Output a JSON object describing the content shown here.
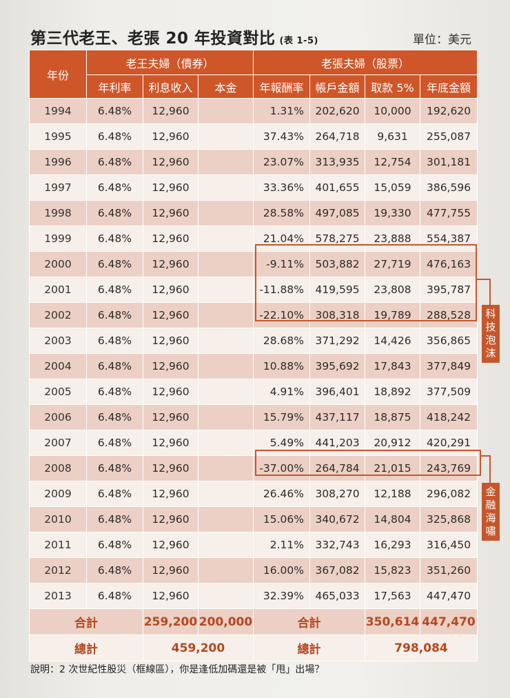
{
  "title": "第三代老王、老張 20 年投資對比",
  "table_tag": "(表 1-5)",
  "unit": "單位：美元",
  "headers": {
    "year": "年份",
    "wang_group": "老王夫婦（債券）",
    "zhang_group": "老張夫婦（股票）",
    "wang_cols": [
      "年利率",
      "利息收入",
      "本金"
    ],
    "zhang_cols": [
      "年報酬率",
      "帳戶金額",
      "取款 5%",
      "年底金額"
    ]
  },
  "rows": [
    {
      "year": "1994",
      "rate": "6.48%",
      "interest": "12,960",
      "ret": "1.31%",
      "account": "202,620",
      "withdraw": "10,000",
      "end": "192,620"
    },
    {
      "year": "1995",
      "rate": "6.48%",
      "interest": "12,960",
      "ret": "37.43%",
      "account": "264,718",
      "withdraw": "9,631",
      "end": "255,087"
    },
    {
      "year": "1996",
      "rate": "6.48%",
      "interest": "12,960",
      "ret": "23.07%",
      "account": "313,935",
      "withdraw": "12,754",
      "end": "301,181"
    },
    {
      "year": "1997",
      "rate": "6.48%",
      "interest": "12,960",
      "ret": "33.36%",
      "account": "401,655",
      "withdraw": "15,059",
      "end": "386,596"
    },
    {
      "year": "1998",
      "rate": "6.48%",
      "interest": "12,960",
      "ret": "28.58%",
      "account": "497,085",
      "withdraw": "19,330",
      "end": "477,755"
    },
    {
      "year": "1999",
      "rate": "6.48%",
      "interest": "12,960",
      "ret": "21.04%",
      "account": "578,275",
      "withdraw": "23,888",
      "end": "554,387"
    },
    {
      "year": "2000",
      "rate": "6.48%",
      "interest": "12,960",
      "ret": "-9.11%",
      "account": "503,882",
      "withdraw": "27,719",
      "end": "476,163"
    },
    {
      "year": "2001",
      "rate": "6.48%",
      "interest": "12,960",
      "ret": "-11.88%",
      "account": "419,595",
      "withdraw": "23,808",
      "end": "395,787"
    },
    {
      "year": "2002",
      "rate": "6.48%",
      "interest": "12,960",
      "ret": "-22.10%",
      "account": "308,318",
      "withdraw": "19,789",
      "end": "288,528"
    },
    {
      "year": "2003",
      "rate": "6.48%",
      "interest": "12,960",
      "ret": "28.68%",
      "account": "371,292",
      "withdraw": "14,426",
      "end": "356,865"
    },
    {
      "year": "2004",
      "rate": "6.48%",
      "interest": "12,960",
      "ret": "10.88%",
      "account": "395,692",
      "withdraw": "17,843",
      "end": "377,849"
    },
    {
      "year": "2005",
      "rate": "6.48%",
      "interest": "12,960",
      "ret": "4.91%",
      "account": "396,401",
      "withdraw": "18,892",
      "end": "377,509"
    },
    {
      "year": "2006",
      "rate": "6.48%",
      "interest": "12,960",
      "ret": "15.79%",
      "account": "437,117",
      "withdraw": "18,875",
      "end": "418,242"
    },
    {
      "year": "2007",
      "rate": "6.48%",
      "interest": "12,960",
      "ret": "5.49%",
      "account": "441,203",
      "withdraw": "20,912",
      "end": "420,291"
    },
    {
      "year": "2008",
      "rate": "6.48%",
      "interest": "12,960",
      "ret": "-37.00%",
      "account": "264,784",
      "withdraw": "21,015",
      "end": "243,769"
    },
    {
      "year": "2009",
      "rate": "6.48%",
      "interest": "12,960",
      "ret": "26.46%",
      "account": "308,270",
      "withdraw": "12,188",
      "end": "296,082"
    },
    {
      "year": "2010",
      "rate": "6.48%",
      "interest": "12,960",
      "ret": "15.06%",
      "account": "340,672",
      "withdraw": "14,804",
      "end": "325,868"
    },
    {
      "year": "2011",
      "rate": "6.48%",
      "interest": "12,960",
      "ret": "2.11%",
      "account": "332,743",
      "withdraw": "16,293",
      "end": "316,450"
    },
    {
      "year": "2012",
      "rate": "6.48%",
      "interest": "12,960",
      "ret": "16.00%",
      "account": "367,082",
      "withdraw": "15,823",
      "end": "351,260"
    },
    {
      "year": "2013",
      "rate": "6.48%",
      "interest": "12,960",
      "ret": "32.39%",
      "account": "465,033",
      "withdraw": "17,563",
      "end": "447,470"
    }
  ],
  "totals": {
    "label": "合計",
    "wang_interest": "259,200",
    "wang_principal": "200,000",
    "zhang_label": "合計",
    "zhang_withdraw": "350,614",
    "zhang_end": "447,470"
  },
  "grand_totals": {
    "label": "總計",
    "wang": "459,200",
    "zhang_label": "總計",
    "zhang": "798,084"
  },
  "annotations": {
    "tech_bubble": "科技泡沫",
    "financial_tsunami": "金融海嘯"
  },
  "note": "說明：2 次世紀性股災（框線區），你是逢低加碼還是被「甩」出場？",
  "colors": {
    "header_bg": "#cf5628",
    "accent": "#c6562c",
    "row_dark": "#ecd0c5",
    "row_light": "#f6efea",
    "total_text": "#b5481f"
  }
}
